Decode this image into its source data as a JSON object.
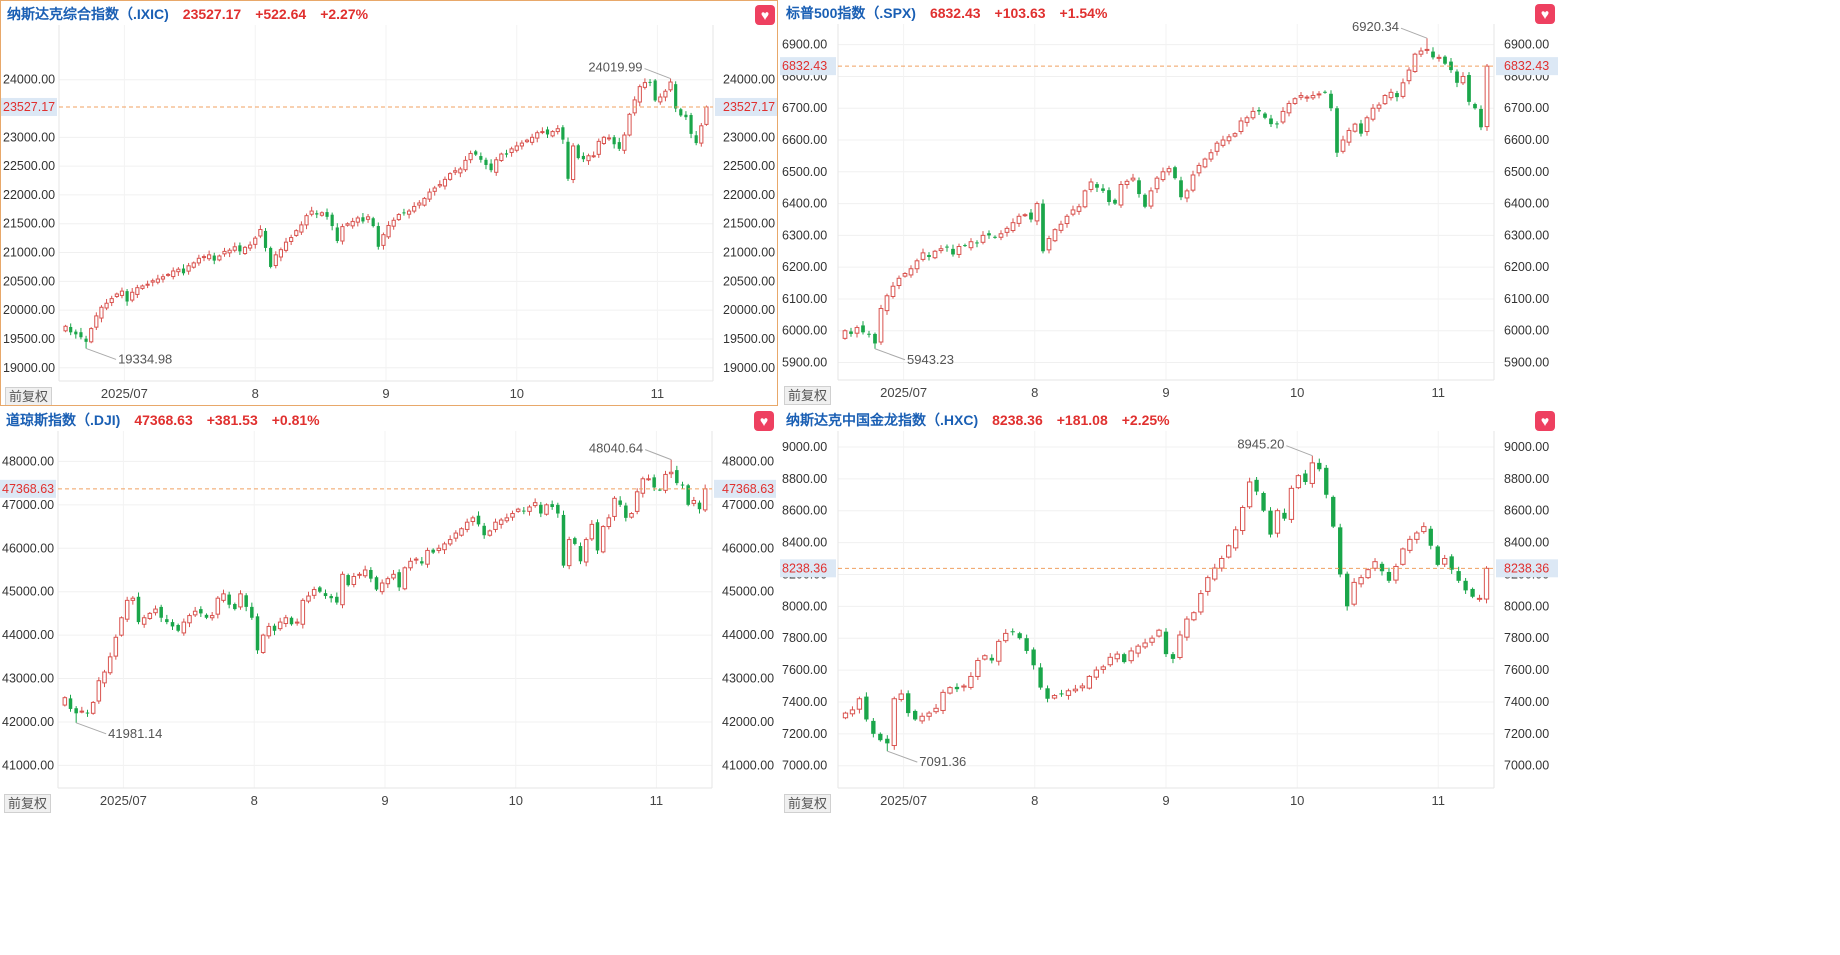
{
  "colors": {
    "up": "#d9534f",
    "down": "#1aa64a",
    "current_line": "#f0a060",
    "current_label_bg": "#dce8f5",
    "accent": "#1a5fb4"
  },
  "adjust_label": "前复权",
  "panels": [
    {
      "title": "纳斯达克综合指数（.IXIC)",
      "price": "23527.17",
      "change": "+522.64",
      "change_pct": "+2.27%",
      "current_label": "23527.17",
      "high_label": "24019.99",
      "low_label": "19334.98"
    },
    {
      "title": "标普500指数（.SPX)",
      "price": "6832.43",
      "change": "+103.63",
      "change_pct": "+1.54%",
      "current_label": "6832.43",
      "high_label": "6920.34",
      "low_label": "5943.23"
    },
    {
      "title": "道琼斯指数（.DJI)",
      "price": "47368.63",
      "change": "+381.53",
      "change_pct": "+0.81%",
      "current_label": "47368.63",
      "high_label": "48040.64",
      "low_label": "41981.14"
    },
    {
      "title": "纳斯达克中国金龙指数（.HXC)",
      "price": "8238.36",
      "change": "+181.08",
      "change_pct": "+2.25%",
      "current_label": "8238.36",
      "high_label": "8945.20",
      "low_label": "7091.36"
    }
  ],
  "chart_data": [
    {
      "type": "candlestick",
      "title": "纳斯达克综合指数（.IXIC)",
      "x_ticks": [
        "2025/07",
        "8",
        "9",
        "10",
        "11"
      ],
      "y_ticks": [
        "19000.00",
        "19500.00",
        "20000.00",
        "20500.00",
        "21000.00",
        "21500.00",
        "22000.00",
        "22500.00",
        "23000.00",
        "24000.00"
      ],
      "ylim": [
        18770,
        24950
      ],
      "current": 23527.17,
      "high": 24019.99,
      "low": 19334.98,
      "close_series": [
        19720,
        19615,
        19580,
        19530,
        19450,
        19680,
        19900,
        20050,
        20120,
        20200,
        20280,
        20330,
        20150,
        20310,
        20390,
        20420,
        20450,
        20510,
        20540,
        20580,
        20620,
        20680,
        20710,
        20640,
        20770,
        20820,
        20900,
        20930,
        20960,
        20860,
        20940,
        21020,
        21040,
        21100,
        21020,
        21090,
        21130,
        21250,
        21400,
        21080,
        20750,
        20960,
        21050,
        21180,
        21260,
        21380,
        21480,
        21640,
        21720,
        21660,
        21690,
        21620,
        21460,
        21200,
        21450,
        21500,
        21540,
        21600,
        21540,
        21620,
        21460,
        21100,
        21310,
        21470,
        21560,
        21660,
        21690,
        21720,
        21800,
        21860,
        21940,
        22050,
        22120,
        22180,
        22270,
        22370,
        22420,
        22450,
        22600,
        22720,
        22700,
        22610,
        22520,
        22430,
        22610,
        22710,
        22700,
        22800,
        22850,
        22900,
        22950,
        23000,
        23080,
        23100,
        23050,
        23100,
        23150,
        22960,
        22280,
        22850,
        22640,
        22620,
        22680,
        22680,
        22930,
        23000,
        22990,
        22880,
        22800,
        23040,
        23400,
        23650,
        23880,
        23950,
        23950,
        23640,
        23700,
        23800,
        23960,
        23500,
        23380,
        23350,
        23060,
        22900,
        23200,
        23527.17
      ]
    },
    {
      "type": "candlestick",
      "title": "标普500指数（.SPX)",
      "x_ticks": [
        "2025/07",
        "8",
        "9",
        "10",
        "11"
      ],
      "y_ticks": [
        "5900.00",
        "6000.00",
        "6100.00",
        "6200.00",
        "6300.00",
        "6400.00",
        "6500.00",
        "6600.00",
        "6700.00",
        "6800.00",
        "6900.00"
      ],
      "ylim": [
        5845,
        6965
      ],
      "current": 6832.43,
      "high": 6920.34,
      "low": 5943.23,
      "close_series": [
        6000,
        5990,
        6010,
        5995,
        5990,
        5960,
        6070,
        6110,
        6140,
        6165,
        6180,
        6195,
        6220,
        6245,
        6232,
        6250,
        6258,
        6262,
        6240,
        6265,
        6268,
        6280,
        6276,
        6300,
        6300,
        6294,
        6305,
        6322,
        6340,
        6360,
        6365,
        6350,
        6400,
        6250,
        6290,
        6318,
        6335,
        6360,
        6380,
        6390,
        6440,
        6468,
        6450,
        6440,
        6405,
        6400,
        6460,
        6470,
        6480,
        6430,
        6390,
        6440,
        6480,
        6500,
        6510,
        6480,
        6420,
        6440,
        6490,
        6520,
        6540,
        6560,
        6590,
        6600,
        6610,
        6620,
        6660,
        6670,
        6690,
        6690,
        6670,
        6650,
        6650,
        6690,
        6715,
        6730,
        6740,
        6735,
        6740,
        6745,
        6750,
        6700,
        6560,
        6600,
        6630,
        6650,
        6620,
        6670,
        6700,
        6710,
        6740,
        6750,
        6735,
        6780,
        6820,
        6870,
        6880,
        6885,
        6860,
        6860,
        6840,
        6820,
        6780,
        6800,
        6720,
        6700,
        6640,
        6832.43
      ]
    },
    {
      "type": "candlestick",
      "title": "道琼斯指数（.DJI)",
      "x_ticks": [
        "2025/07",
        "8",
        "9",
        "10",
        "11"
      ],
      "y_ticks": [
        "41000.00",
        "42000.00",
        "43000.00",
        "44000.00",
        "45000.00",
        "46000.00",
        "47000.00",
        "48000.00"
      ],
      "ylim": [
        40480,
        48700
      ],
      "current": 47368.63,
      "high": 48040.64,
      "low": 41981.14,
      "close_series": [
        42560,
        42300,
        42200,
        42250,
        42200,
        42450,
        42950,
        43150,
        43500,
        43950,
        44400,
        44800,
        44850,
        44300,
        44400,
        44500,
        44600,
        44400,
        44300,
        44200,
        44100,
        44300,
        44450,
        44550,
        44500,
        44400,
        44450,
        44850,
        44950,
        44700,
        44600,
        44950,
        44650,
        44400,
        43650,
        44000,
        44200,
        44100,
        44300,
        44400,
        44250,
        44300,
        44800,
        44900,
        45050,
        45000,
        44900,
        44850,
        44750,
        45400,
        45150,
        45350,
        45400,
        45500,
        45300,
        45050,
        45200,
        45300,
        45400,
        45100,
        45550,
        45700,
        45750,
        45650,
        45950,
        45900,
        46000,
        46100,
        46200,
        46350,
        46450,
        46600,
        46700,
        46550,
        46300,
        46400,
        46600,
        46650,
        46700,
        46800,
        46900,
        46850,
        46950,
        47050,
        46800,
        47000,
        46950,
        46800,
        45600,
        46200,
        46100,
        45700,
        46200,
        46550,
        45950,
        46500,
        46700,
        47150,
        47000,
        46700,
        46800,
        47300,
        47600,
        47600,
        47400,
        47350,
        47700,
        47750,
        47500,
        47450,
        47000,
        47100,
        46900,
        47368.63
      ]
    },
    {
      "type": "candlestick",
      "title": "纳斯达克中国金龙指数（.HXC)",
      "x_ticks": [
        "2025/07",
        "8",
        "9",
        "10",
        "11"
      ],
      "y_ticks": [
        "7000.00",
        "7200.00",
        "7400.00",
        "7600.00",
        "7800.00",
        "8000.00",
        "8200.00",
        "8400.00",
        "8600.00",
        "8800.00",
        "9000.00"
      ],
      "ylim": [
        6860,
        9100
      ],
      "current": 8238.36,
      "high": 8945.2,
      "low": 7091.36,
      "close_series": [
        7330,
        7350,
        7420,
        7290,
        7200,
        7160,
        7140,
        7420,
        7450,
        7330,
        7290,
        7310,
        7330,
        7360,
        7460,
        7490,
        7480,
        7500,
        7560,
        7660,
        7690,
        7660,
        7780,
        7830,
        7840,
        7800,
        7720,
        7630,
        7490,
        7420,
        7440,
        7450,
        7470,
        7480,
        7500,
        7560,
        7600,
        7620,
        7680,
        7700,
        7650,
        7720,
        7750,
        7770,
        7800,
        7850,
        7700,
        7670,
        7820,
        7920,
        7960,
        8080,
        8180,
        8240,
        8300,
        8380,
        8480,
        8620,
        8780,
        8720,
        8600,
        8450,
        8600,
        8550,
        8740,
        8820,
        8780,
        8900,
        8860,
        8700,
        8500,
        8200,
        8000,
        8150,
        8180,
        8230,
        8280,
        8220,
        8160,
        8250,
        8360,
        8420,
        8460,
        8500,
        8380,
        8260,
        8300,
        8230,
        8160,
        8100,
        8060,
        8050,
        8238.36
      ]
    }
  ]
}
